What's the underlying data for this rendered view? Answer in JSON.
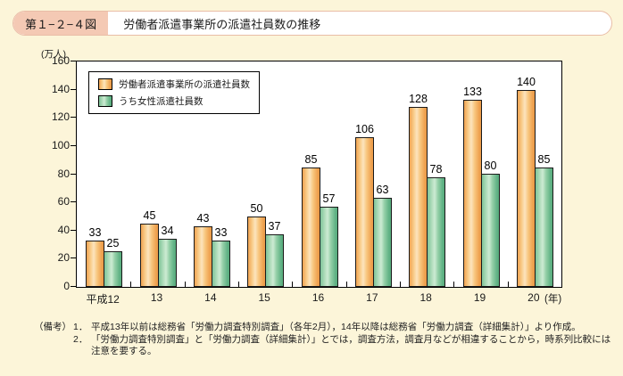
{
  "page": {
    "figure_label": "第１−２−４図",
    "title": "労働者派遣事業所の派遣社員数の推移"
  },
  "chart_data": {
    "type": "bar",
    "unit_label": "(万人)",
    "year_unit_label": "(年)",
    "categories": [
      "平成12",
      "13",
      "14",
      "15",
      "16",
      "17",
      "18",
      "19",
      "20"
    ],
    "series": [
      {
        "name": "労働者派遣事業所の派遣社員数",
        "color": "#F2A756",
        "color_stops": [
          "#F0A352 0%",
          "#F9CE8C 25%",
          "#FCE4BE 42%",
          "#F8C77F 62%",
          "#EFA352 88%",
          "#EA9A48 100%"
        ],
        "values": [
          33,
          45,
          43,
          50,
          85,
          106,
          128,
          133,
          140
        ]
      },
      {
        "name": "うち女性派遣社員数",
        "color": "#62B386",
        "color_stops": [
          "#7FC498 0%",
          "#AFDCBB 25%",
          "#CDEBD3 42%",
          "#93CFA7 62%",
          "#62B386 88%",
          "#58AC7D 100%"
        ],
        "values": [
          25,
          34,
          33,
          37,
          57,
          63,
          78,
          80,
          85
        ]
      }
    ],
    "ylim": [
      0,
      160
    ],
    "ytick_step": 20,
    "grid": false,
    "legend_position": "top-left-inside"
  },
  "notes": {
    "label": "（備考）",
    "items": [
      {
        "no": "1．",
        "text": "平成13年以前は総務省「労働力調査特別調査」（各年2月），14年以降は総務省「労働力調査（詳細集計）」より作成。"
      },
      {
        "no": "2．",
        "text": "「労働力調査特別調査」と「労働力調査（詳細集計）」とでは，調査方法，調査月などが相違することから，時系列比較には注意を要する。"
      }
    ]
  },
  "colors": {
    "page_background": "#FCF5D9",
    "band_label_background": "#F4C9B4",
    "band_border": "#E9BDA7",
    "plot_background": "#FFFFFF",
    "axis": "#000000",
    "text": "#1A1A1A"
  }
}
